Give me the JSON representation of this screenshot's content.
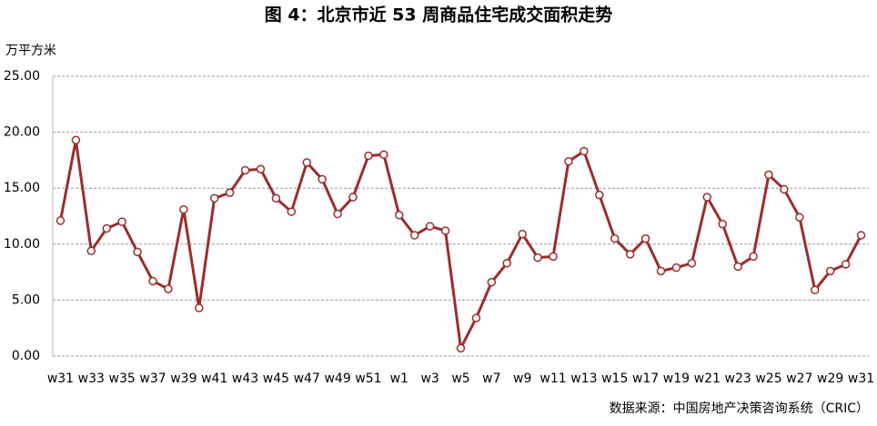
{
  "chart_data": {
    "type": "line",
    "title": "图 4：北京市近 53 周商品住宅成交面积走势",
    "y_label": "万平方米",
    "source": "数据来源：中国房地产决策咨询系统（CRIC）",
    "categories": [
      "w31",
      null,
      "w33",
      null,
      "w35",
      null,
      "w37",
      null,
      "w39",
      null,
      "w41",
      null,
      "w43",
      null,
      "w45",
      null,
      "w47",
      null,
      "w49",
      null,
      "w51",
      null,
      "w1",
      null,
      "w3",
      null,
      "w5",
      null,
      "w7",
      null,
      "w9",
      null,
      "w11",
      null,
      "w13",
      null,
      "w15",
      null,
      "w17",
      null,
      "w19",
      null,
      "w21",
      null,
      "w23",
      null,
      "w25",
      null,
      "w27",
      null,
      "w29",
      null,
      "w31"
    ],
    "series": [
      {
        "color": "#9b2d2d",
        "values": [
          12.1,
          19.3,
          9.4,
          11.4,
          12.0,
          9.3,
          6.7,
          6.0,
          13.1,
          4.3,
          14.1,
          14.6,
          16.6,
          16.7,
          14.1,
          12.9,
          17.3,
          15.8,
          12.7,
          14.2,
          17.9,
          18.0,
          12.6,
          10.8,
          11.6,
          11.2,
          0.7,
          3.4,
          6.6,
          8.3,
          10.9,
          8.8,
          8.9,
          17.4,
          18.3,
          14.4,
          10.5,
          9.1,
          10.5,
          7.6,
          7.9,
          8.3,
          14.2,
          11.8,
          8.0,
          8.9,
          16.2,
          14.9,
          12.4,
          5.9,
          7.6,
          8.2,
          10.8
        ]
      }
    ],
    "ylim": [
      0,
      25
    ],
    "yticks": [
      {
        "value": 0,
        "label": "0.00"
      },
      {
        "value": 5,
        "label": "5.00"
      },
      {
        "value": 10,
        "label": "10.00"
      },
      {
        "value": 15,
        "label": "15.00"
      },
      {
        "value": 20,
        "label": "20.00"
      },
      {
        "value": 25,
        "label": "25.00"
      }
    ],
    "grid": true
  }
}
